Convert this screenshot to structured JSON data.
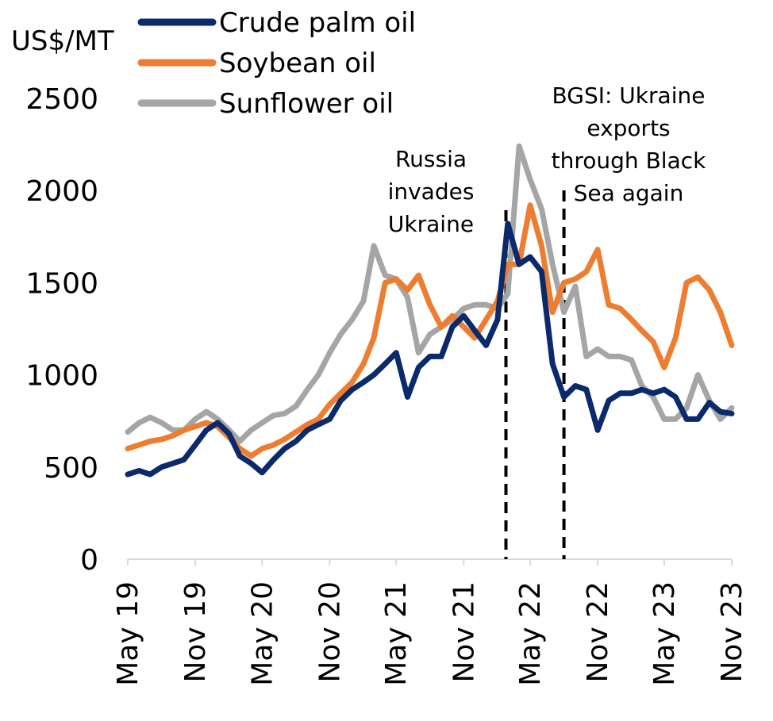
{
  "chart_data": {
    "type": "line",
    "ylabel": "US$/MT",
    "ylim": [
      0,
      2500
    ],
    "yticks": [
      0,
      500,
      1000,
      1500,
      2000,
      2500
    ],
    "xlim": [
      "2019-05-01",
      "2023-11-01"
    ],
    "xticks": [
      {
        "date": "2019-05-01",
        "label": "May 19"
      },
      {
        "date": "2019-11-01",
        "label": "Nov 19"
      },
      {
        "date": "2020-05-01",
        "label": "May 20"
      },
      {
        "date": "2020-11-01",
        "label": "Nov 20"
      },
      {
        "date": "2021-05-01",
        "label": "May 21"
      },
      {
        "date": "2021-11-01",
        "label": "Nov 21"
      },
      {
        "date": "2022-05-01",
        "label": "May 22"
      },
      {
        "date": "2022-11-01",
        "label": "Nov 22"
      },
      {
        "date": "2023-05-01",
        "label": "May 23"
      },
      {
        "date": "2023-11-01",
        "label": "Nov 23"
      }
    ],
    "grid": false,
    "legend_position": "top-left",
    "series": [
      {
        "name": "Crude palm oil",
        "color": "#0b2a6b",
        "x": [
          "2019-05-01",
          "2019-06-01",
          "2019-07-01",
          "2019-08-01",
          "2019-09-01",
          "2019-10-01",
          "2019-11-01",
          "2019-12-01",
          "2020-01-01",
          "2020-02-01",
          "2020-03-01",
          "2020-04-01",
          "2020-05-01",
          "2020-06-01",
          "2020-07-01",
          "2020-08-01",
          "2020-09-01",
          "2020-10-01",
          "2020-11-01",
          "2020-12-01",
          "2021-01-01",
          "2021-02-01",
          "2021-03-01",
          "2021-04-01",
          "2021-05-01",
          "2021-06-01",
          "2021-07-01",
          "2021-08-01",
          "2021-09-01",
          "2021-10-01",
          "2021-11-01",
          "2021-12-01",
          "2022-01-01",
          "2022-02-01",
          "2022-03-01",
          "2022-04-01",
          "2022-05-01",
          "2022-06-01",
          "2022-07-01",
          "2022-08-01",
          "2022-09-01",
          "2022-10-01",
          "2022-11-01",
          "2022-12-01",
          "2023-01-01",
          "2023-02-01",
          "2023-03-01",
          "2023-04-01",
          "2023-05-01",
          "2023-06-01",
          "2023-07-01",
          "2023-08-01",
          "2023-09-01",
          "2023-10-01",
          "2023-11-01"
        ],
        "values": [
          460,
          480,
          460,
          500,
          520,
          540,
          620,
          700,
          740,
          680,
          560,
          520,
          470,
          540,
          600,
          640,
          700,
          730,
          760,
          860,
          920,
          960,
          1000,
          1060,
          1120,
          880,
          1040,
          1100,
          1100,
          1260,
          1320,
          1240,
          1160,
          1300,
          1820,
          1600,
          1640,
          1560,
          1060,
          880,
          940,
          920,
          700,
          860,
          900,
          900,
          920,
          900,
          920,
          880,
          760,
          760,
          850,
          800,
          790
        ]
      },
      {
        "name": "Soybean oil",
        "color": "#ed7d31",
        "x": [
          "2019-05-01",
          "2019-06-01",
          "2019-07-01",
          "2019-08-01",
          "2019-09-01",
          "2019-10-01",
          "2019-11-01",
          "2019-12-01",
          "2020-01-01",
          "2020-02-01",
          "2020-03-01",
          "2020-04-01",
          "2020-05-01",
          "2020-06-01",
          "2020-07-01",
          "2020-08-01",
          "2020-09-01",
          "2020-10-01",
          "2020-11-01",
          "2020-12-01",
          "2021-01-01",
          "2021-02-01",
          "2021-03-01",
          "2021-04-01",
          "2021-05-01",
          "2021-06-01",
          "2021-07-01",
          "2021-08-01",
          "2021-09-01",
          "2021-10-01",
          "2021-11-01",
          "2021-12-01",
          "2022-01-01",
          "2022-02-01",
          "2022-03-01",
          "2022-04-01",
          "2022-05-01",
          "2022-06-01",
          "2022-07-01",
          "2022-08-01",
          "2022-09-01",
          "2022-10-01",
          "2022-11-01",
          "2022-12-01",
          "2023-01-01",
          "2023-02-01",
          "2023-03-01",
          "2023-04-01",
          "2023-05-01",
          "2023-06-01",
          "2023-07-01",
          "2023-08-01",
          "2023-09-01",
          "2023-10-01",
          "2023-11-01"
        ],
        "values": [
          600,
          620,
          640,
          650,
          670,
          700,
          720,
          740,
          720,
          660,
          600,
          560,
          600,
          620,
          650,
          690,
          730,
          760,
          840,
          900,
          960,
          1060,
          1200,
          1500,
          1520,
          1460,
          1540,
          1380,
          1260,
          1320,
          1260,
          1200,
          1300,
          1400,
          1600,
          1600,
          1920,
          1700,
          1340,
          1500,
          1520,
          1560,
          1680,
          1380,
          1360,
          1300,
          1240,
          1180,
          1040,
          1200,
          1500,
          1530,
          1460,
          1340,
          1160
        ]
      },
      {
        "name": "Sunflower oil",
        "color": "#a5a5a5",
        "x": [
          "2019-05-01",
          "2019-06-01",
          "2019-07-01",
          "2019-08-01",
          "2019-09-01",
          "2019-10-01",
          "2019-11-01",
          "2019-12-01",
          "2020-01-01",
          "2020-02-01",
          "2020-03-01",
          "2020-04-01",
          "2020-05-01",
          "2020-06-01",
          "2020-07-01",
          "2020-08-01",
          "2020-09-01",
          "2020-10-01",
          "2020-11-01",
          "2020-12-01",
          "2021-01-01",
          "2021-02-01",
          "2021-03-01",
          "2021-04-01",
          "2021-05-01",
          "2021-06-01",
          "2021-07-01",
          "2021-08-01",
          "2021-09-01",
          "2021-10-01",
          "2021-11-01",
          "2021-12-01",
          "2022-01-01",
          "2022-02-01",
          "2022-03-01",
          "2022-04-01",
          "2022-05-01",
          "2022-06-01",
          "2022-07-01",
          "2022-08-01",
          "2022-09-01",
          "2022-10-01",
          "2022-11-01",
          "2022-12-01",
          "2023-01-01",
          "2023-02-01",
          "2023-03-01",
          "2023-04-01",
          "2023-05-01",
          "2023-06-01",
          "2023-07-01",
          "2023-08-01",
          "2023-09-01",
          "2023-10-01",
          "2023-11-01"
        ],
        "values": [
          690,
          740,
          770,
          740,
          700,
          700,
          760,
          800,
          760,
          700,
          640,
          700,
          740,
          780,
          790,
          830,
          920,
          1000,
          1120,
          1220,
          1300,
          1400,
          1700,
          1540,
          1520,
          1420,
          1120,
          1220,
          1260,
          1300,
          1360,
          1380,
          1380,
          1360,
          1440,
          2240,
          2060,
          1900,
          1600,
          1340,
          1480,
          1100,
          1140,
          1100,
          1100,
          1080,
          940,
          880,
          760,
          760,
          820,
          1000,
          860,
          760,
          820
        ]
      }
    ],
    "annotations": [
      {
        "x": "2022-02-24",
        "style": "dashed-vertical",
        "lines": [
          "Russia",
          "invades",
          "Ukraine"
        ]
      },
      {
        "x": "2022-08-01",
        "style": "dashed-vertical",
        "lines": [
          "BGSI: Ukraine",
          "exports",
          "through Black",
          "Sea again"
        ]
      }
    ]
  }
}
